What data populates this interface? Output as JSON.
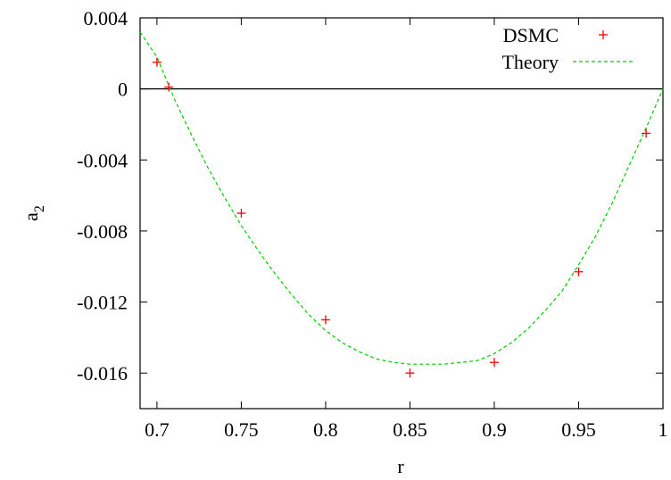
{
  "chart_data": {
    "type": "scatter",
    "xlabel": "r",
    "ylabel_main": "a",
    "ylabel_sub": "2",
    "xlim": [
      0.69,
      1.0
    ],
    "ylim": [
      -0.018,
      0.004
    ],
    "xticks": [
      0.7,
      0.75,
      0.8,
      0.85,
      0.9,
      0.95,
      1.0
    ],
    "xtick_labels": [
      "0.7",
      "0.75",
      "0.8",
      "0.85",
      "0.9",
      "0.95",
      "1"
    ],
    "yticks": [
      0.004,
      0.0,
      -0.004,
      -0.008,
      -0.012,
      -0.016
    ],
    "ytick_labels": [
      "0.004",
      "0",
      "-0.004",
      "-0.008",
      "-0.012",
      "-0.016"
    ],
    "zero_line": true,
    "grid": false,
    "legend_position": "top-right",
    "series": [
      {
        "name": "DSMC",
        "style": "points-plus",
        "color": "#ff0000",
        "x": [
          0.7,
          0.707,
          0.75,
          0.8,
          0.85,
          0.9,
          0.95,
          0.99
        ],
        "y": [
          0.0015,
          0.0001,
          -0.007,
          -0.013,
          -0.016,
          -0.0154,
          -0.0103,
          -0.0025
        ]
      },
      {
        "name": "Theory",
        "style": "dashed-line",
        "color": "#00cc00",
        "x": [
          0.69,
          0.7,
          0.71,
          0.72,
          0.73,
          0.74,
          0.75,
          0.76,
          0.77,
          0.78,
          0.79,
          0.8,
          0.81,
          0.82,
          0.83,
          0.84,
          0.85,
          0.86,
          0.87,
          0.88,
          0.89,
          0.9,
          0.91,
          0.92,
          0.93,
          0.94,
          0.95,
          0.96,
          0.97,
          0.98,
          0.99,
          1.0
        ],
        "y": [
          0.0032,
          0.0018,
          -0.0005,
          -0.0025,
          -0.0044,
          -0.0061,
          -0.0077,
          -0.0091,
          -0.0104,
          -0.0116,
          -0.0127,
          -0.0136,
          -0.0143,
          -0.0148,
          -0.0152,
          -0.0154,
          -0.0155,
          -0.0155,
          -0.0155,
          -0.0154,
          -0.0153,
          -0.0149,
          -0.0143,
          -0.0135,
          -0.0125,
          -0.0114,
          -0.0099,
          -0.0083,
          -0.0064,
          -0.0043,
          -0.0022,
          0.0
        ]
      }
    ]
  }
}
